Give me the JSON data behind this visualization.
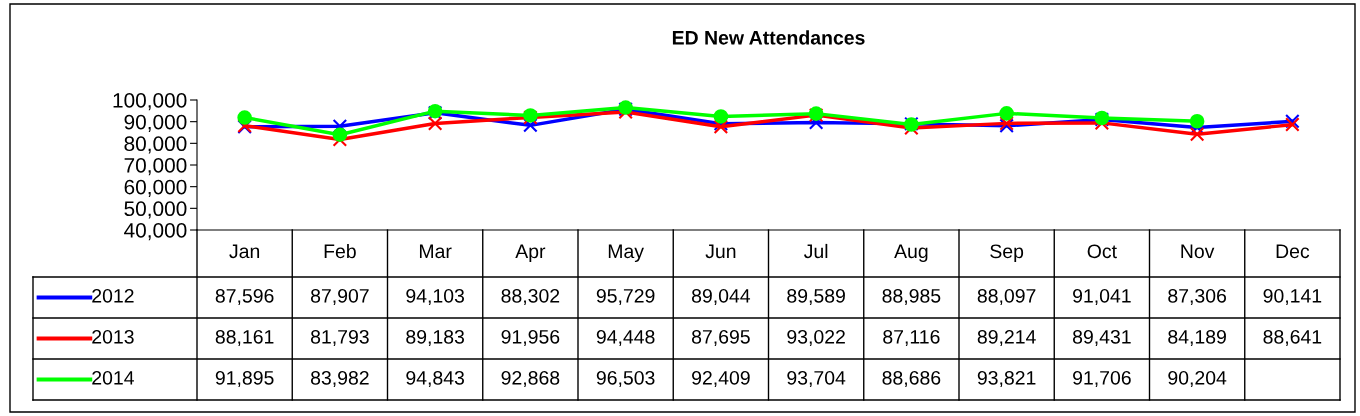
{
  "chart_data": {
    "type": "line",
    "title": "ED New Attendances",
    "categories": [
      "Jan",
      "Feb",
      "Mar",
      "Apr",
      "May",
      "Jun",
      "Jul",
      "Aug",
      "Sep",
      "Oct",
      "Nov",
      "Dec"
    ],
    "series": [
      {
        "name": "2012",
        "color": "#0000ff",
        "marker": "cross",
        "values": [
          87596,
          87907,
          94103,
          88302,
          95729,
          89044,
          89589,
          88985,
          88097,
          91041,
          87306,
          90141
        ],
        "value_labels": [
          "87,596",
          "87,907",
          "94,103",
          "88,302",
          "95,729",
          "89,044",
          "89,589",
          "88,985",
          "88,097",
          "91,041",
          "87,306",
          "90,141"
        ]
      },
      {
        "name": "2013",
        "color": "#ff0000",
        "marker": "cross",
        "values": [
          88161,
          81793,
          89183,
          91956,
          94448,
          87695,
          93022,
          87116,
          89214,
          89431,
          84189,
          88641
        ],
        "value_labels": [
          "88,161",
          "81,793",
          "89,183",
          "91,956",
          "94,448",
          "87,695",
          "93,022",
          "87,116",
          "89,214",
          "89,431",
          "84,189",
          "88,641"
        ]
      },
      {
        "name": "2014",
        "color": "#00ff00",
        "marker": "circle",
        "values": [
          91895,
          83982,
          94843,
          92868,
          96503,
          92409,
          93704,
          88686,
          93821,
          91706,
          90204,
          null
        ],
        "value_labels": [
          "91,895",
          "83,982",
          "94,843",
          "92,868",
          "96,503",
          "92,409",
          "93,704",
          "88,686",
          "93,821",
          "91,706",
          "90,204",
          null
        ]
      }
    ],
    "ylim": [
      40000,
      100000
    ],
    "yticks": [
      {
        "value": 40000,
        "label": "40,000"
      },
      {
        "value": 50000,
        "label": "50,000"
      },
      {
        "value": 60000,
        "label": "60,000"
      },
      {
        "value": 70000,
        "label": "70,000"
      },
      {
        "value": 80000,
        "label": "80,000"
      },
      {
        "value": 90000,
        "label": "90,000"
      },
      {
        "value": 100000,
        "label": "100,000"
      }
    ],
    "legend": "bottom left",
    "grid": false,
    "line_style": "solid"
  }
}
